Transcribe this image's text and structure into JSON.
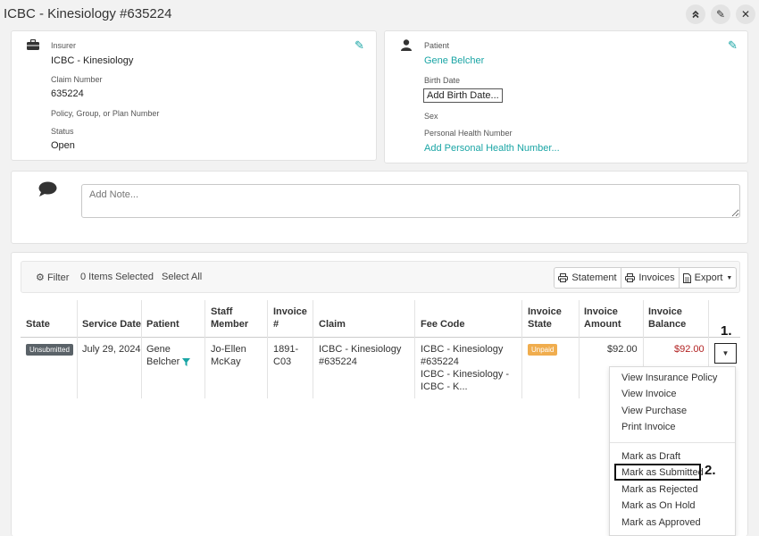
{
  "header": {
    "title": "ICBC - Kinesiology #635224"
  },
  "insurer_card": {
    "insurer_label": "Insurer",
    "insurer_value": "ICBC - Kinesiology",
    "claim_number_label": "Claim Number",
    "claim_number_value": "635224",
    "policy_label": "Policy, Group, or Plan Number",
    "status_label": "Status",
    "status_value": "Open"
  },
  "patient_card": {
    "patient_label": "Patient",
    "patient_value": "Gene Belcher",
    "birth_date_label": "Birth Date",
    "birth_date_button": "Add Birth Date...",
    "sex_label": "Sex",
    "phn_label": "Personal Health Number",
    "phn_link": "Add Personal Health Number..."
  },
  "note": {
    "placeholder": "Add Note..."
  },
  "toolbar": {
    "filter": "Filter",
    "items_selected": "0 Items Selected",
    "select_all": "Select All",
    "statement": "Statement",
    "invoices": "Invoices",
    "export": "Export"
  },
  "table": {
    "headers": {
      "state": "State",
      "service_date": "Service Date",
      "patient": "Patient",
      "staff_line1": "Staff",
      "staff_line2": "Member",
      "invoice_line1": "Invoice",
      "invoice_line2": "#",
      "claim": "Claim",
      "fee_code": "Fee Code",
      "inv_state_line1": "Invoice",
      "inv_state_line2": "State",
      "inv_amount_line1": "Invoice",
      "inv_amount_line2": "Amount",
      "inv_balance_line1": "Invoice",
      "inv_balance_line2": "Balance"
    },
    "row": {
      "state": "Unsubmitted",
      "service_date": "July 29, 2024",
      "patient_line1": "Gene",
      "patient_line2": "Belcher",
      "staff_line1": "Jo-Ellen",
      "staff_line2": "McKay",
      "invoice_line1": "1891-",
      "invoice_line2": "C03",
      "claim_line1": "ICBC - Kinesiology",
      "claim_line2": "#635224",
      "fee_line1": "ICBC - Kinesiology",
      "fee_line2": "#635224",
      "fee_line3": "ICBC - Kinesiology -",
      "fee_line4": "ICBC - K...",
      "invoice_state": "Unpaid",
      "amount": "$92.00",
      "balance": "$92.00"
    }
  },
  "annotations": {
    "step1": "1.",
    "step2": "2."
  },
  "menu": {
    "items": [
      "View Insurance Policy",
      "View Invoice",
      "View Purchase",
      "Print Invoice",
      "Mark as Draft",
      "Mark as Submitted",
      "Mark as Rejected",
      "Mark as On Hold",
      "Mark as Approved"
    ]
  },
  "colors": {
    "accent": "#1aa5a5",
    "balance": "#b22222",
    "unpaid": "#f0ad4e",
    "unsubmitted": "#5a6268"
  }
}
